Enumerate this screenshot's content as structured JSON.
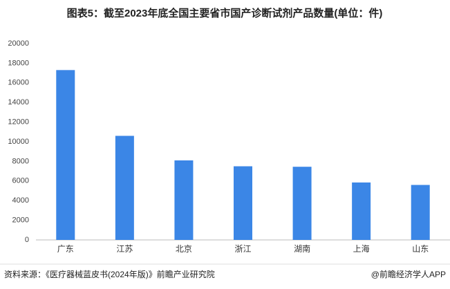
{
  "chart_data": {
    "type": "bar",
    "title": "图表5：截至2023年底全国主要省市国产诊断试剂产品数量(单位：件)",
    "categories": [
      "广东",
      "江苏",
      "北京",
      "浙江",
      "湖南",
      "上海",
      "山东"
    ],
    "values": [
      17300,
      10600,
      8100,
      7500,
      7450,
      5850,
      5600
    ],
    "color": "#3b86e6",
    "ylim": [
      0,
      20000
    ],
    "yticks": [
      0,
      2000,
      4000,
      6000,
      8000,
      10000,
      12000,
      14000,
      16000,
      18000,
      20000
    ],
    "grid": false,
    "source": "资料来源：《医疗器械蓝皮书(2024年版)》前瞻产业研究院",
    "credit": "@前瞻经济学人APP"
  }
}
